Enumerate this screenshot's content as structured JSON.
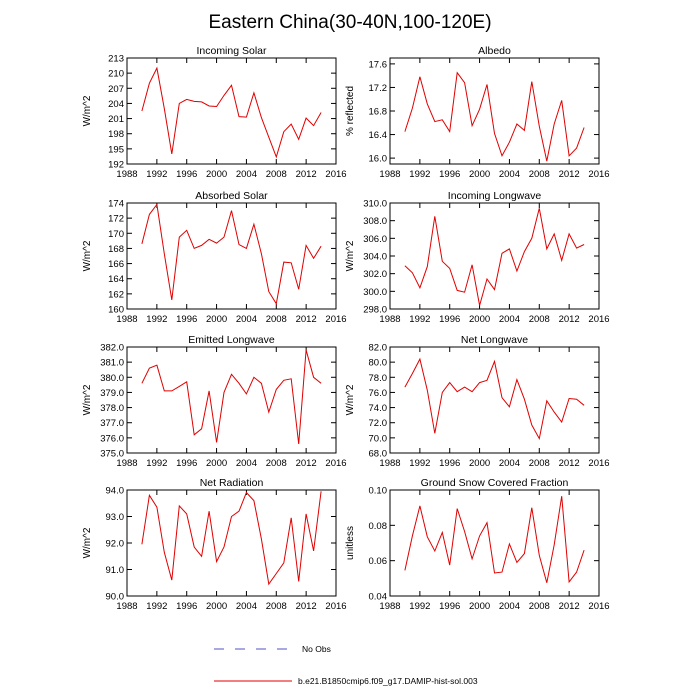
{
  "figure": {
    "title": "Eastern China(30-40N,100-120E)"
  },
  "legend": [
    {
      "label": "No Obs",
      "color": "#5050c8",
      "style": "dashed"
    },
    {
      "label": "b.e21.B1850cmip6.f09_g17.DAMIP-hist-sol.003",
      "color": "#e00000",
      "style": "solid"
    }
  ],
  "chart_data": [
    {
      "type": "line",
      "title": "Incoming Solar",
      "ylabel": "W/m^2",
      "xlim": [
        1988,
        2016
      ],
      "xticks": [
        1988,
        1992,
        1996,
        2000,
        2004,
        2008,
        2012,
        2016
      ],
      "ylim": [
        192,
        213
      ],
      "yticks": [
        192,
        195,
        198,
        201,
        204,
        207,
        210,
        213
      ],
      "yticklabels": [
        "192",
        "195",
        "198",
        "201",
        "204",
        "207",
        "210",
        "213"
      ],
      "series": [
        {
          "color": "#e00000",
          "x": [
            1990,
            1991,
            1992,
            1993,
            1994,
            1995,
            1996,
            1997,
            1998,
            1999,
            2000,
            2001,
            2002,
            2003,
            2004,
            2005,
            2006,
            2007,
            2008,
            2009,
            2010,
            2011,
            2012,
            2013,
            2014
          ],
          "values": [
            202.5,
            208.0,
            211.0,
            203.0,
            194.0,
            204.0,
            204.8,
            204.4,
            204.3,
            203.5,
            203.4,
            205.6,
            207.6,
            201.4,
            201.3,
            206.1,
            201.2,
            197.3,
            193.4,
            198.4,
            199.9,
            196.9,
            201.1,
            199.6,
            202.2
          ]
        }
      ]
    },
    {
      "type": "line",
      "title": "Albedo",
      "ylabel": "% reflected",
      "xlim": [
        1988,
        2016
      ],
      "xticks": [
        1988,
        1992,
        1996,
        2000,
        2004,
        2008,
        2012,
        2016
      ],
      "ylim": [
        15.9,
        17.7
      ],
      "yticks": [
        16.0,
        16.4,
        16.8,
        17.2,
        17.6
      ],
      "yticklabels": [
        "16.0",
        "16.4",
        "16.8",
        "17.2",
        "17.6"
      ],
      "series": [
        {
          "color": "#e00000",
          "x": [
            1990,
            1991,
            1992,
            1993,
            1994,
            1995,
            1996,
            1997,
            1998,
            1999,
            2000,
            2001,
            2002,
            2003,
            2004,
            2005,
            2006,
            2007,
            2008,
            2009,
            2010,
            2011,
            2012,
            2013,
            2014
          ],
          "values": [
            16.45,
            16.85,
            17.38,
            16.92,
            16.62,
            16.65,
            16.45,
            17.45,
            17.28,
            16.55,
            16.83,
            17.25,
            16.42,
            16.04,
            16.27,
            16.58,
            16.47,
            17.3,
            16.54,
            15.95,
            16.58,
            16.98,
            16.04,
            16.17,
            16.52
          ]
        }
      ]
    },
    {
      "type": "line",
      "title": "Absorbed Solar",
      "ylabel": "W/m^2",
      "xlim": [
        1988,
        2016
      ],
      "xticks": [
        1988,
        1992,
        1996,
        2000,
        2004,
        2008,
        2012,
        2016
      ],
      "ylim": [
        160,
        174
      ],
      "yticks": [
        160,
        162,
        164,
        166,
        168,
        170,
        172,
        174
      ],
      "yticklabels": [
        "160",
        "162",
        "164",
        "166",
        "168",
        "170",
        "172",
        "174"
      ],
      "series": [
        {
          "color": "#e00000",
          "x": [
            1990,
            1991,
            1992,
            1993,
            1994,
            1995,
            1996,
            1997,
            1998,
            1999,
            2000,
            2001,
            2002,
            2003,
            2004,
            2005,
            2006,
            2007,
            2008,
            2009,
            2010,
            2011,
            2012,
            2013,
            2014
          ],
          "values": [
            168.6,
            172.5,
            173.8,
            167.3,
            161.2,
            169.5,
            170.4,
            168.0,
            168.4,
            169.2,
            168.7,
            169.5,
            173.0,
            168.5,
            168.0,
            171.2,
            167.3,
            162.3,
            160.7,
            166.2,
            166.1,
            162.6,
            168.4,
            166.7,
            168.3
          ]
        }
      ]
    },
    {
      "type": "line",
      "title": "Incoming Longwave",
      "ylabel": "W/m^2",
      "xlim": [
        1988,
        2016
      ],
      "xticks": [
        1988,
        1992,
        1996,
        2000,
        2004,
        2008,
        2012,
        2016
      ],
      "ylim": [
        298,
        310
      ],
      "yticks": [
        298,
        300,
        302,
        304,
        306,
        308,
        310
      ],
      "yticklabels": [
        "298.0",
        "300.0",
        "302.0",
        "304.0",
        "306.0",
        "308.0",
        "310.0"
      ],
      "series": [
        {
          "color": "#e00000",
          "x": [
            1990,
            1991,
            1992,
            1993,
            1994,
            1995,
            1996,
            1997,
            1998,
            1999,
            2000,
            2001,
            2002,
            2003,
            2004,
            2005,
            2006,
            2007,
            2008,
            2009,
            2010,
            2011,
            2012,
            2013,
            2014
          ],
          "values": [
            302.9,
            302.1,
            300.4,
            302.8,
            308.5,
            303.4,
            302.6,
            300.1,
            299.9,
            303.0,
            298.4,
            301.4,
            300.2,
            304.3,
            304.8,
            302.3,
            304.5,
            306.0,
            309.4,
            304.8,
            306.5,
            303.5,
            306.5,
            304.9,
            305.3
          ]
        }
      ]
    },
    {
      "type": "line",
      "title": "Emitted Longwave",
      "ylabel": "W/m^2",
      "xlim": [
        1988,
        2016
      ],
      "xticks": [
        1988,
        1992,
        1996,
        2000,
        2004,
        2008,
        2012,
        2016
      ],
      "ylim": [
        375,
        382
      ],
      "yticks": [
        375,
        376,
        377,
        378,
        379,
        380,
        381,
        382
      ],
      "yticklabels": [
        "375.0",
        "376.0",
        "377.0",
        "378.0",
        "379.0",
        "380.0",
        "381.0",
        "382.0"
      ],
      "series": [
        {
          "color": "#e00000",
          "x": [
            1990,
            1991,
            1992,
            1993,
            1994,
            1995,
            1996,
            1997,
            1998,
            1999,
            2000,
            2001,
            2002,
            2003,
            2004,
            2005,
            2006,
            2007,
            2008,
            2009,
            2010,
            2011,
            2012,
            2013,
            2014
          ],
          "values": [
            379.6,
            380.6,
            380.8,
            379.1,
            379.1,
            379.4,
            379.7,
            376.2,
            376.6,
            379.1,
            375.7,
            379.0,
            380.2,
            379.6,
            378.9,
            380.0,
            379.6,
            377.7,
            379.2,
            379.8,
            379.9,
            375.6,
            381.8,
            380.0,
            379.6
          ]
        }
      ]
    },
    {
      "type": "line",
      "title": "Net Longwave",
      "ylabel": "W/m^2",
      "xlim": [
        1988,
        2016
      ],
      "xticks": [
        1988,
        1992,
        1996,
        2000,
        2004,
        2008,
        2012,
        2016
      ],
      "ylim": [
        68,
        82
      ],
      "yticks": [
        68,
        70,
        72,
        74,
        76,
        78,
        80,
        82
      ],
      "yticklabels": [
        "68.0",
        "70.0",
        "72.0",
        "74.0",
        "76.0",
        "78.0",
        "80.0",
        "82.0"
      ],
      "series": [
        {
          "color": "#e00000",
          "x": [
            1990,
            1991,
            1992,
            1993,
            1994,
            1995,
            1996,
            1997,
            1998,
            1999,
            2000,
            2001,
            2002,
            2003,
            2004,
            2005,
            2006,
            2007,
            2008,
            2009,
            2010,
            2011,
            2012,
            2013,
            2014
          ],
          "values": [
            76.7,
            78.5,
            80.4,
            76.3,
            70.6,
            76.0,
            77.3,
            76.1,
            76.7,
            76.1,
            77.3,
            77.6,
            80.1,
            75.3,
            74.1,
            77.7,
            75.1,
            71.7,
            69.9,
            74.9,
            73.4,
            72.1,
            75.2,
            75.1,
            74.3
          ]
        }
      ]
    },
    {
      "type": "line",
      "title": "Net Radiation",
      "ylabel": "W/m^2",
      "xlim": [
        1988,
        2016
      ],
      "xticks": [
        1988,
        1992,
        1996,
        2000,
        2004,
        2008,
        2012,
        2016
      ],
      "ylim": [
        90,
        94
      ],
      "yticks": [
        90,
        91,
        92,
        93,
        94
      ],
      "yticklabels": [
        "90.0",
        "91.0",
        "92.0",
        "93.0",
        "94.0"
      ],
      "series": [
        {
          "color": "#e00000",
          "x": [
            1990,
            1991,
            1992,
            1993,
            1994,
            1995,
            1996,
            1997,
            1998,
            1999,
            2000,
            2001,
            2002,
            2003,
            2004,
            2005,
            2006,
            2007,
            2008,
            2009,
            2010,
            2011,
            2012,
            2013,
            2014
          ],
          "values": [
            91.95,
            93.8,
            93.35,
            91.65,
            90.6,
            93.4,
            93.1,
            91.85,
            91.5,
            93.2,
            91.3,
            91.85,
            93.0,
            93.2,
            93.9,
            93.6,
            92.15,
            90.45,
            90.85,
            91.25,
            92.95,
            90.55,
            93.1,
            91.7,
            93.95
          ]
        }
      ]
    },
    {
      "type": "line",
      "title": "Ground Snow Covered Fraction",
      "ylabel": "unitless",
      "xlim": [
        1988,
        2016
      ],
      "xticks": [
        1988,
        1992,
        1996,
        2000,
        2004,
        2008,
        2012,
        2016
      ],
      "ylim": [
        0.04,
        0.1
      ],
      "yticks": [
        0.04,
        0.06,
        0.08,
        0.1
      ],
      "yticklabels": [
        "0.04",
        "0.06",
        "0.08",
        "0.10"
      ],
      "series": [
        {
          "color": "#e00000",
          "x": [
            1990,
            1991,
            1992,
            1993,
            1994,
            1995,
            1996,
            1997,
            1998,
            1999,
            2000,
            2001,
            2002,
            2003,
            2004,
            2005,
            2006,
            2007,
            2008,
            2009,
            2010,
            2011,
            2012,
            2013,
            2014
          ],
          "values": [
            0.0545,
            0.074,
            0.091,
            0.0735,
            0.0655,
            0.076,
            0.0575,
            0.0895,
            0.0765,
            0.061,
            0.074,
            0.0815,
            0.053,
            0.0535,
            0.0695,
            0.059,
            0.064,
            0.09,
            0.063,
            0.0475,
            0.069,
            0.0965,
            0.048,
            0.0535,
            0.066
          ]
        }
      ]
    }
  ]
}
